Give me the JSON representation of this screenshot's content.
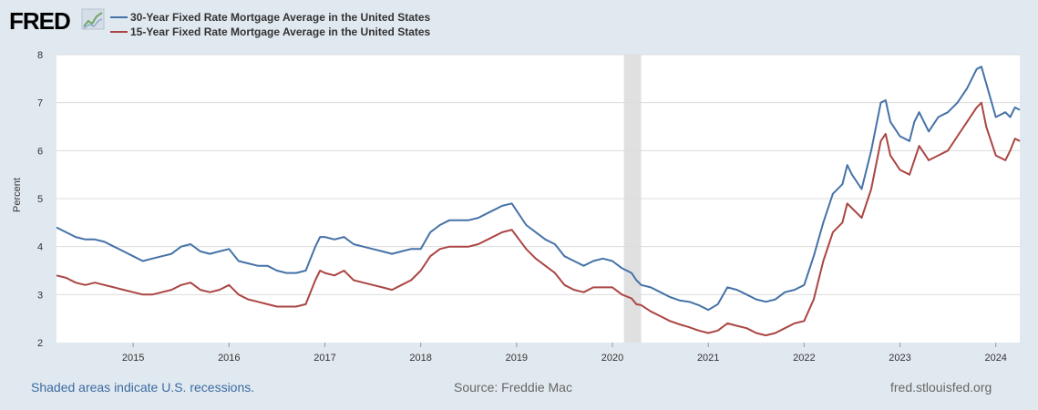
{
  "header": {
    "logo_text": "FRED",
    "logo_icon": "line-chart-icon"
  },
  "footer": {
    "recession_note": "Shaded areas indicate U.S. recessions.",
    "source": "Source: Freddie Mac",
    "site": "fred.stlouisfed.org"
  },
  "colors": {
    "background": "#e1e9f0",
    "plot_background": "#ffffff",
    "grid": "#dcdcdc",
    "recession_shade": "#e0e0e0",
    "series_30yr": "#4572a7",
    "series_15yr": "#aa4643",
    "footer_link": "#3b6aa0",
    "footer_muted": "#666666"
  },
  "chart_data": {
    "type": "line",
    "title": "",
    "xlabel": "",
    "ylabel": "Percent",
    "ylim": [
      2,
      8
    ],
    "xlim": [
      2014.2,
      2024.25
    ],
    "y_ticks": [
      "2",
      "3",
      "4",
      "5",
      "6",
      "7",
      "8"
    ],
    "x_ticks": [
      "2015",
      "2016",
      "2017",
      "2018",
      "2019",
      "2020",
      "2021",
      "2022",
      "2023",
      "2024"
    ],
    "grid": true,
    "legend_position": "top-left",
    "recessions": [
      {
        "start": 2020.12,
        "end": 2020.3
      }
    ],
    "series": [
      {
        "name": "30-Year Fixed Rate Mortgage Average in the United States",
        "color": "#4572a7",
        "x": [
          2014.2,
          2014.3,
          2014.4,
          2014.5,
          2014.6,
          2014.7,
          2014.8,
          2014.9,
          2015.0,
          2015.1,
          2015.2,
          2015.3,
          2015.4,
          2015.5,
          2015.6,
          2015.7,
          2015.8,
          2015.9,
          2016.0,
          2016.1,
          2016.2,
          2016.3,
          2016.4,
          2016.5,
          2016.6,
          2016.7,
          2016.8,
          2016.9,
          2016.95,
          2017.0,
          2017.1,
          2017.2,
          2017.3,
          2017.4,
          2017.5,
          2017.6,
          2017.7,
          2017.8,
          2017.9,
          2018.0,
          2018.1,
          2018.2,
          2018.3,
          2018.4,
          2018.5,
          2018.6,
          2018.7,
          2018.85,
          2018.95,
          2019.1,
          2019.2,
          2019.3,
          2019.4,
          2019.5,
          2019.6,
          2019.7,
          2019.8,
          2019.9,
          2020.0,
          2020.1,
          2020.2,
          2020.25,
          2020.3,
          2020.4,
          2020.5,
          2020.6,
          2020.7,
          2020.8,
          2020.9,
          2021.0,
          2021.1,
          2021.2,
          2021.3,
          2021.4,
          2021.5,
          2021.6,
          2021.7,
          2021.8,
          2021.9,
          2022.0,
          2022.1,
          2022.2,
          2022.3,
          2022.4,
          2022.45,
          2022.5,
          2022.6,
          2022.7,
          2022.8,
          2022.85,
          2022.9,
          2023.0,
          2023.1,
          2023.15,
          2023.2,
          2023.3,
          2023.4,
          2023.5,
          2023.6,
          2023.7,
          2023.8,
          2023.85,
          2023.9,
          2024.0,
          2024.1,
          2024.15,
          2024.2,
          2024.25
        ],
        "values": [
          4.4,
          4.3,
          4.2,
          4.15,
          4.15,
          4.1,
          4.0,
          3.9,
          3.8,
          3.7,
          3.75,
          3.8,
          3.85,
          4.0,
          4.05,
          3.9,
          3.85,
          3.9,
          3.95,
          3.7,
          3.65,
          3.6,
          3.6,
          3.5,
          3.45,
          3.45,
          3.5,
          4.0,
          4.2,
          4.2,
          4.15,
          4.2,
          4.05,
          4.0,
          3.95,
          3.9,
          3.85,
          3.9,
          3.95,
          3.95,
          4.3,
          4.45,
          4.55,
          4.55,
          4.55,
          4.6,
          4.7,
          4.85,
          4.9,
          4.45,
          4.3,
          4.15,
          4.05,
          3.8,
          3.7,
          3.6,
          3.7,
          3.75,
          3.7,
          3.55,
          3.45,
          3.3,
          3.2,
          3.15,
          3.05,
          2.95,
          2.88,
          2.85,
          2.78,
          2.68,
          2.8,
          3.15,
          3.1,
          3.0,
          2.9,
          2.85,
          2.9,
          3.05,
          3.1,
          3.2,
          3.8,
          4.5,
          5.1,
          5.3,
          5.7,
          5.5,
          5.2,
          6.0,
          7.0,
          7.05,
          6.6,
          6.3,
          6.2,
          6.6,
          6.8,
          6.4,
          6.7,
          6.8,
          7.0,
          7.3,
          7.7,
          7.75,
          7.4,
          6.7,
          6.8,
          6.7,
          6.9,
          6.85
        ]
      },
      {
        "name": "15-Year Fixed Rate Mortgage Average in the United States",
        "color": "#aa4643",
        "x": [
          2014.2,
          2014.3,
          2014.4,
          2014.5,
          2014.6,
          2014.7,
          2014.8,
          2014.9,
          2015.0,
          2015.1,
          2015.2,
          2015.3,
          2015.4,
          2015.5,
          2015.6,
          2015.7,
          2015.8,
          2015.9,
          2016.0,
          2016.1,
          2016.2,
          2016.3,
          2016.4,
          2016.5,
          2016.6,
          2016.7,
          2016.8,
          2016.9,
          2016.95,
          2017.0,
          2017.1,
          2017.2,
          2017.3,
          2017.4,
          2017.5,
          2017.6,
          2017.7,
          2017.8,
          2017.9,
          2018.0,
          2018.1,
          2018.2,
          2018.3,
          2018.4,
          2018.5,
          2018.6,
          2018.7,
          2018.85,
          2018.95,
          2019.1,
          2019.2,
          2019.3,
          2019.4,
          2019.5,
          2019.6,
          2019.7,
          2019.8,
          2019.9,
          2020.0,
          2020.1,
          2020.2,
          2020.25,
          2020.3,
          2020.4,
          2020.5,
          2020.6,
          2020.7,
          2020.8,
          2020.9,
          2021.0,
          2021.1,
          2021.2,
          2021.3,
          2021.4,
          2021.5,
          2021.6,
          2021.7,
          2021.8,
          2021.9,
          2022.0,
          2022.1,
          2022.2,
          2022.3,
          2022.4,
          2022.45,
          2022.5,
          2022.6,
          2022.7,
          2022.8,
          2022.85,
          2022.9,
          2023.0,
          2023.1,
          2023.15,
          2023.2,
          2023.3,
          2023.4,
          2023.5,
          2023.6,
          2023.7,
          2023.8,
          2023.85,
          2023.9,
          2024.0,
          2024.1,
          2024.15,
          2024.2,
          2024.25
        ],
        "values": [
          3.4,
          3.35,
          3.25,
          3.2,
          3.25,
          3.2,
          3.15,
          3.1,
          3.05,
          3.0,
          3.0,
          3.05,
          3.1,
          3.2,
          3.25,
          3.1,
          3.05,
          3.1,
          3.2,
          3.0,
          2.9,
          2.85,
          2.8,
          2.75,
          2.75,
          2.75,
          2.8,
          3.3,
          3.5,
          3.45,
          3.4,
          3.5,
          3.3,
          3.25,
          3.2,
          3.15,
          3.1,
          3.2,
          3.3,
          3.5,
          3.8,
          3.95,
          4.0,
          4.0,
          4.0,
          4.05,
          4.15,
          4.3,
          4.35,
          3.95,
          3.75,
          3.6,
          3.45,
          3.2,
          3.1,
          3.05,
          3.15,
          3.15,
          3.15,
          3.0,
          2.92,
          2.8,
          2.78,
          2.65,
          2.55,
          2.45,
          2.38,
          2.32,
          2.25,
          2.2,
          2.25,
          2.4,
          2.35,
          2.3,
          2.2,
          2.15,
          2.2,
          2.3,
          2.4,
          2.45,
          2.9,
          3.7,
          4.3,
          4.5,
          4.9,
          4.8,
          4.6,
          5.2,
          6.2,
          6.35,
          5.9,
          5.6,
          5.5,
          5.8,
          6.1,
          5.8,
          5.9,
          6.0,
          6.3,
          6.6,
          6.9,
          7.0,
          6.5,
          5.9,
          5.8,
          6.0,
          6.25,
          6.2
        ]
      }
    ]
  }
}
